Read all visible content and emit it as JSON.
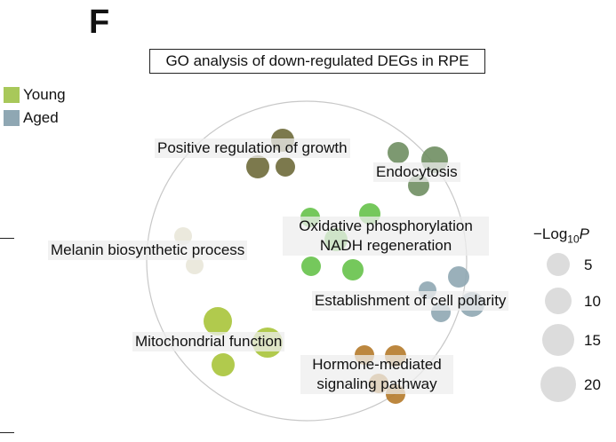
{
  "panel_letter": "F",
  "title": "GO analysis of down-regulated DEGs in RPE",
  "legend": [
    {
      "label": "Young",
      "color": "#a8c85a"
    },
    {
      "label": "Aged",
      "color": "#8fa7b3"
    }
  ],
  "size_legend": {
    "title_prefix": "−Log",
    "title_sub": "10",
    "title_var": "P",
    "values": [
      "5",
      "10",
      "15",
      "20"
    ]
  },
  "terms": [
    {
      "name": "Positive regulation of growth",
      "color": "#6e6a3a",
      "group": "Aged"
    },
    {
      "name": "Endocytosis",
      "color": "#6f8e62",
      "group": "Aged"
    },
    {
      "name": "Oxidative phosphorylation",
      "color": "#66c24a",
      "group": "Young"
    },
    {
      "name": "NADH regeneration",
      "color": "#66c24a",
      "group": "Young"
    },
    {
      "name": "Melanin biosynthetic process",
      "color": "#e9e7d9",
      "group": "Young"
    },
    {
      "name": "Establishment of cell polarity",
      "color": "#8fa7b3",
      "group": "Aged"
    },
    {
      "name": "Mitochondrial function",
      "color": "#a8c43a",
      "group": "Young"
    },
    {
      "name": "Hormone-mediated",
      "color": "#b57a2a",
      "group": "Aged"
    },
    {
      "name": "signaling pathway",
      "color": "#b57a2a",
      "group": "Aged"
    }
  ]
}
